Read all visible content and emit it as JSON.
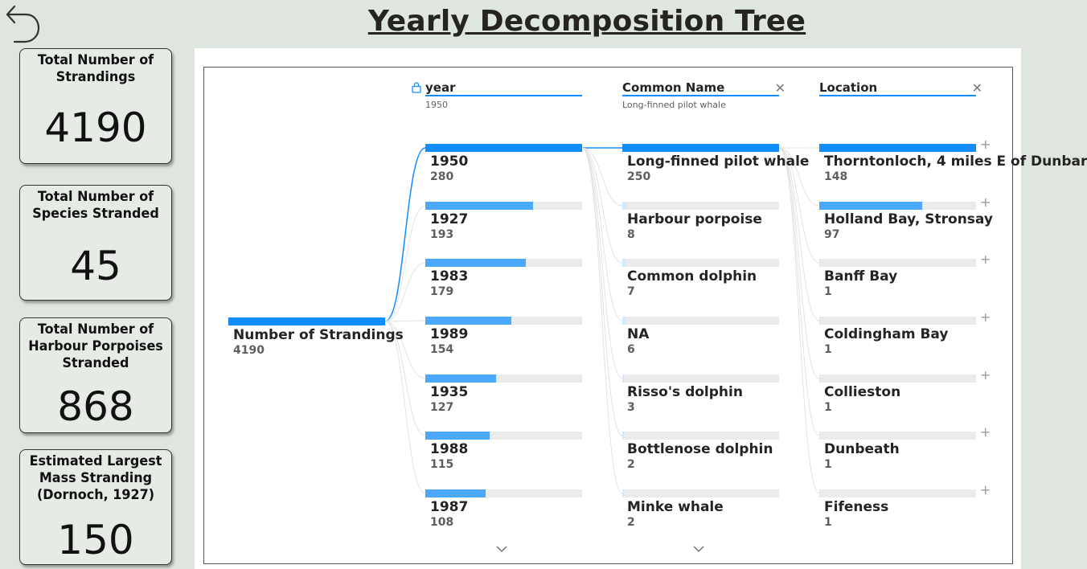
{
  "title": "Yearly Decomposition Tree",
  "icons": {
    "back": "back-arrow-icon",
    "lock": "lock-icon",
    "close": "close-icon",
    "expand": "plus-icon",
    "scroll": "chevron-down-icon"
  },
  "colors": {
    "accent": "#118dff",
    "accent_light": "#4aa8ff",
    "track": "#ebebeb",
    "background": "#dfe5df"
  },
  "kpis": [
    {
      "label": "Total Number of Strandings",
      "value": "4190"
    },
    {
      "label": "Total Number of Species Stranded",
      "value": "45"
    },
    {
      "label": "Total Number of Harbour Porpoises Stranded",
      "value": "868"
    },
    {
      "label": "Estimated Largest Mass Stranding (Dornoch, 1927)",
      "value": "150"
    }
  ],
  "tree": {
    "root": {
      "label": "Number of Strandings",
      "value": "4190"
    },
    "levels": [
      {
        "header": "year",
        "selected": "1950",
        "locked": true,
        "max": 280,
        "nodes": [
          {
            "label": "1950",
            "value": "280"
          },
          {
            "label": "1927",
            "value": "193"
          },
          {
            "label": "1983",
            "value": "179"
          },
          {
            "label": "1989",
            "value": "154"
          },
          {
            "label": "1935",
            "value": "127"
          },
          {
            "label": "1988",
            "value": "115"
          },
          {
            "label": "1987",
            "value": "108"
          }
        ]
      },
      {
        "header": "Common Name",
        "selected": "Long-finned pilot whale",
        "locked": false,
        "max": 250,
        "nodes": [
          {
            "label": "Long-finned pilot whale",
            "value": "250"
          },
          {
            "label": "Harbour porpoise",
            "value": "8"
          },
          {
            "label": "Common dolphin",
            "value": "7"
          },
          {
            "label": "NA",
            "value": "6"
          },
          {
            "label": "Risso's dolphin",
            "value": "3"
          },
          {
            "label": "Bottlenose dolphin",
            "value": "2"
          },
          {
            "label": "Minke whale",
            "value": "2"
          }
        ]
      },
      {
        "header": "Location",
        "selected": "",
        "locked": false,
        "max": 148,
        "nodes": [
          {
            "label": "Thorntonloch, 4 miles E of Dunbar",
            "value": "148"
          },
          {
            "label": "Holland Bay, Stronsay",
            "value": "97"
          },
          {
            "label": "Banff Bay",
            "value": "1"
          },
          {
            "label": "Coldingham Bay",
            "value": "1"
          },
          {
            "label": "Collieston",
            "value": "1"
          },
          {
            "label": "Dunbeath",
            "value": "1"
          },
          {
            "label": "Fifeness",
            "value": "1"
          }
        ]
      }
    ]
  }
}
